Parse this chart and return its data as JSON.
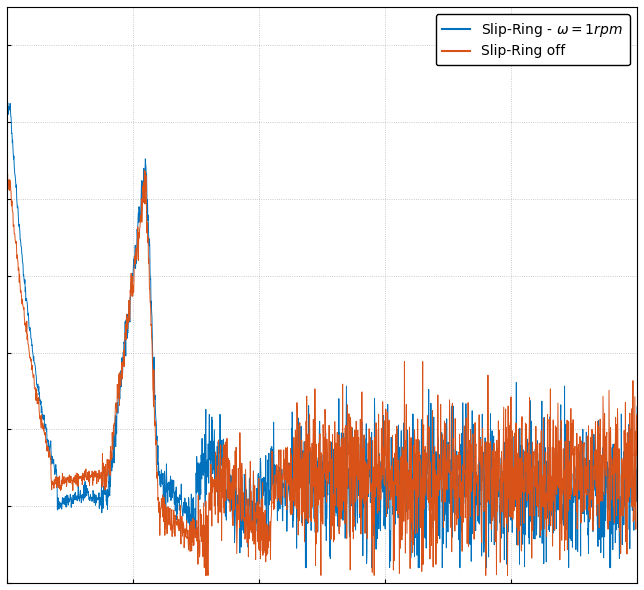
{
  "line1_color": "#0072BD",
  "line2_color": "#D95319",
  "line1_label": "Slip-Ring - $\\omega = 1rpm$",
  "line2_label": "Slip-Ring off",
  "background_color": "#ffffff",
  "grid_color": "#aaaaaa",
  "figsize": [
    6.44,
    5.9
  ],
  "dpi": 100,
  "xlim": [
    0,
    1000
  ],
  "ylim": [
    0,
    1.0
  ]
}
